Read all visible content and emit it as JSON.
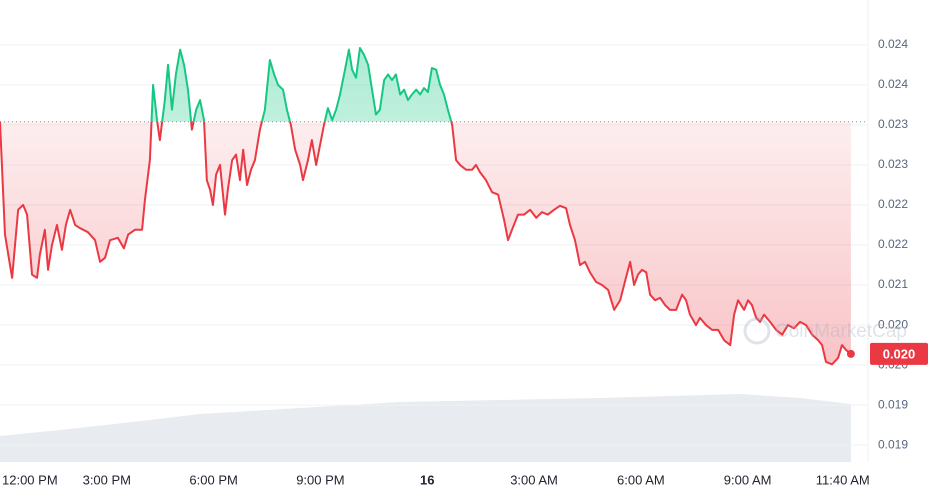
{
  "chart_data": {
    "type": "line",
    "x": [
      0,
      0.14,
      0.34,
      0.51,
      0.65,
      0.76,
      0.9,
      1.04,
      1.12,
      1.26,
      1.35,
      1.46,
      1.6,
      1.74,
      1.85,
      1.97,
      2.11,
      2.25,
      2.47,
      2.67,
      2.81,
      2.95,
      3.09,
      3.31,
      3.48,
      3.6,
      3.79,
      3.99,
      4.07,
      4.21,
      4.3,
      4.41,
      4.49,
      4.63,
      4.72,
      4.83,
      4.94,
      5.06,
      5.17,
      5.28,
      5.39,
      5.51,
      5.62,
      5.73,
      5.81,
      5.9,
      5.98,
      6.07,
      6.18,
      6.32,
      6.4,
      6.52,
      6.63,
      6.74,
      6.83,
      6.94,
      7.05,
      7.16,
      7.3,
      7.44,
      7.58,
      7.7,
      7.81,
      7.95,
      8.06,
      8.17,
      8.29,
      8.43,
      8.51,
      8.65,
      8.76,
      8.88,
      8.99,
      9.1,
      9.21,
      9.33,
      9.44,
      9.55,
      9.69,
      9.8,
      9.89,
      10,
      10.11,
      10.22,
      10.34,
      10.45,
      10.56,
      10.67,
      10.79,
      10.9,
      11.01,
      11.12,
      11.24,
      11.35,
      11.46,
      11.57,
      11.69,
      11.8,
      11.91,
      12.02,
      12.13,
      12.25,
      12.36,
      12.47,
      12.58,
      12.7,
      12.81,
      12.92,
      13.09,
      13.26,
      13.37,
      13.48,
      13.65,
      13.82,
      13.99,
      14.16,
      14.27,
      14.38,
      14.55,
      14.72,
      14.89,
      15.06,
      15.22,
      15.39,
      15.56,
      15.73,
      15.9,
      16.01,
      16.15,
      16.29,
      16.43,
      16.57,
      16.74,
      16.91,
      17.08,
      17.25,
      17.42,
      17.58,
      17.7,
      17.81,
      17.92,
      18.03,
      18.15,
      18.26,
      18.4,
      18.54,
      18.68,
      18.82,
      18.99,
      19.16,
      19.27,
      19.38,
      19.55,
      19.66,
      19.83,
      20,
      20.17,
      20.34,
      20.51,
      20.62,
      20.73,
      20.9,
      21.01,
      21.12,
      21.24,
      21.35,
      21.46,
      21.63,
      21.8,
      21.97,
      22.13,
      22.3,
      22.47,
      22.64,
      22.81,
      22.98,
      23.09,
      23.2,
      23.37,
      23.54,
      23.65,
      23.76,
      23.9
    ],
    "values": [
      0.02304,
      0.02163,
      0.02109,
      0.02194,
      0.022,
      0.02188,
      0.02113,
      0.02109,
      0.02138,
      0.02169,
      0.02119,
      0.0215,
      0.02175,
      0.02144,
      0.02175,
      0.02194,
      0.02175,
      0.02171,
      0.02166,
      0.02156,
      0.02129,
      0.02134,
      0.02156,
      0.02159,
      0.02146,
      0.02163,
      0.02169,
      0.02169,
      0.02206,
      0.02256,
      0.0235,
      0.02306,
      0.02281,
      0.02331,
      0.02375,
      0.02319,
      0.02363,
      0.02394,
      0.02375,
      0.02344,
      0.02294,
      0.02319,
      0.02331,
      0.02306,
      0.02231,
      0.02219,
      0.022,
      0.02238,
      0.0225,
      0.02188,
      0.02219,
      0.02256,
      0.02263,
      0.02231,
      0.02269,
      0.02225,
      0.02244,
      0.02256,
      0.02294,
      0.02319,
      0.02381,
      0.02363,
      0.0235,
      0.02344,
      0.02319,
      0.023,
      0.02269,
      0.0225,
      0.02231,
      0.02256,
      0.02281,
      0.0225,
      0.02275,
      0.023,
      0.02321,
      0.02306,
      0.02319,
      0.02338,
      0.02369,
      0.02394,
      0.02369,
      0.02359,
      0.02396,
      0.02388,
      0.02375,
      0.02344,
      0.02313,
      0.02319,
      0.02356,
      0.02363,
      0.02356,
      0.02363,
      0.02338,
      0.02344,
      0.02331,
      0.02338,
      0.02344,
      0.02338,
      0.02346,
      0.02341,
      0.02371,
      0.02369,
      0.0235,
      0.02338,
      0.02319,
      0.023,
      0.02256,
      0.0225,
      0.02244,
      0.02244,
      0.0225,
      0.02241,
      0.02231,
      0.02216,
      0.02213,
      0.02181,
      0.02156,
      0.02169,
      0.02188,
      0.02188,
      0.02194,
      0.02184,
      0.02191,
      0.02188,
      0.02194,
      0.02199,
      0.02196,
      0.02175,
      0.02156,
      0.02125,
      0.02129,
      0.02116,
      0.02104,
      0.021,
      0.02094,
      0.02069,
      0.02081,
      0.02109,
      0.02129,
      0.021,
      0.02113,
      0.02119,
      0.02116,
      0.02088,
      0.02081,
      0.02084,
      0.02075,
      0.02069,
      0.02069,
      0.02088,
      0.02081,
      0.02063,
      0.0205,
      0.02059,
      0.0205,
      0.02044,
      0.02044,
      0.02031,
      0.02025,
      0.02063,
      0.02081,
      0.02069,
      0.02081,
      0.02075,
      0.02059,
      0.02054,
      0.02063,
      0.02054,
      0.02044,
      0.02038,
      0.0205,
      0.02046,
      0.02054,
      0.0205,
      0.02038,
      0.02031,
      0.02025,
      0.02004,
      0.02001,
      0.02009,
      0.02025,
      0.02019,
      0.02014
    ],
    "up_color": "#16c784",
    "down_color": "#ea3943",
    "current_price_label": "0.020",
    "watermark": "CoinMarketCap",
    "xlim": [
      0,
      24.38
    ],
    "ylim": [
      0.01879,
      0.02456
    ],
    "grid": true,
    "xticks": [
      {
        "value": 0,
        "label": "12:00 PM"
      },
      {
        "value": 3,
        "label": "3:00 PM"
      },
      {
        "value": 6,
        "label": "6:00 PM"
      },
      {
        "value": 9,
        "label": "9:00 PM"
      },
      {
        "value": 12,
        "label": "16"
      },
      {
        "value": 15,
        "label": "3:00 AM"
      },
      {
        "value": 18,
        "label": "6:00 AM"
      },
      {
        "value": 21,
        "label": "9:00 AM"
      },
      {
        "value": 23.67,
        "label": "11:40 AM"
      }
    ],
    "yticks": [
      {
        "value": 0.024,
        "label": "0.024"
      },
      {
        "value": 0.0235,
        "label": "0.024"
      },
      {
        "value": 0.023,
        "label": "0.023"
      },
      {
        "value": 0.0225,
        "label": "0.023"
      },
      {
        "value": 0.022,
        "label": "0.022"
      },
      {
        "value": 0.0215,
        "label": "0.022"
      },
      {
        "value": 0.021,
        "label": "0.021"
      },
      {
        "value": 0.0205,
        "label": "0.020"
      },
      {
        "value": 0.02,
        "label": "0.020"
      },
      {
        "value": 0.0195,
        "label": "0.019"
      },
      {
        "value": 0.019,
        "label": "0.019"
      }
    ]
  }
}
